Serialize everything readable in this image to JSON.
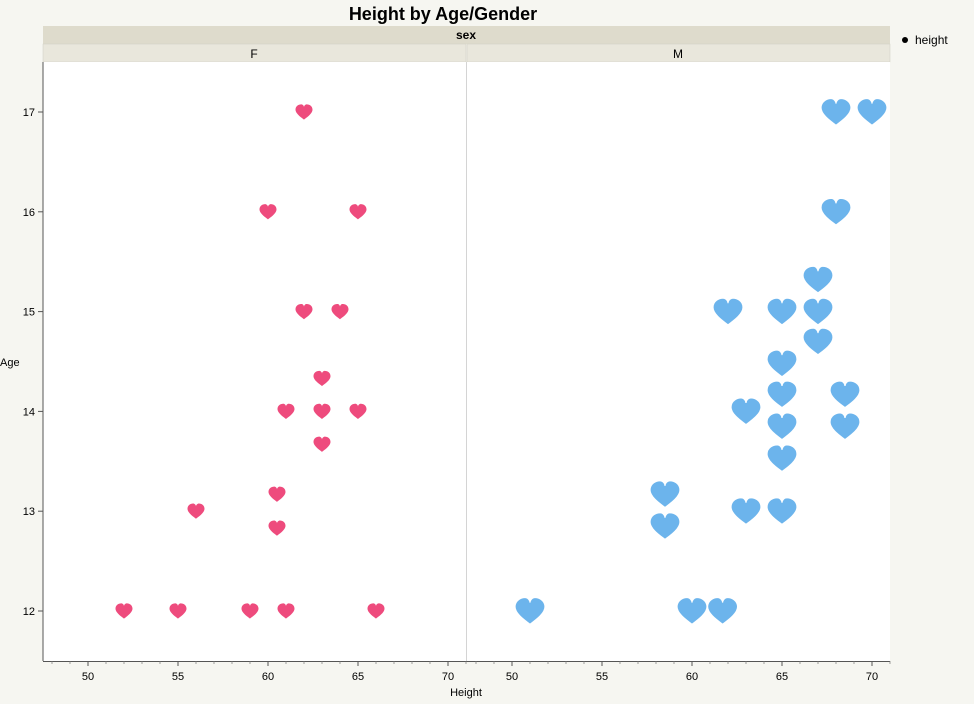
{
  "chart_data": {
    "type": "scatter",
    "title": "Height by Age/Gender",
    "group_header": "sex",
    "xlabel": "Height",
    "ylabel": "Age",
    "legend": {
      "label": "height",
      "placement": "top-right"
    },
    "y_ticks": [
      12,
      13,
      14,
      15,
      16,
      17
    ],
    "panels": [
      {
        "name": "F",
        "xlim": [
          47.5,
          71
        ],
        "x_ticks": [
          50,
          55,
          60,
          65,
          70
        ],
        "marker_color": "#ee4b7d",
        "marker_size": "small",
        "points": [
          {
            "x": 52,
            "y": 12
          },
          {
            "x": 55,
            "y": 12
          },
          {
            "x": 59,
            "y": 12
          },
          {
            "x": 61,
            "y": 12
          },
          {
            "x": 66,
            "y": 12
          },
          {
            "x": 56,
            "y": 13
          },
          {
            "x": 60.5,
            "y": 12.83
          },
          {
            "x": 60.5,
            "y": 13.17
          },
          {
            "x": 61,
            "y": 14
          },
          {
            "x": 63,
            "y": 14
          },
          {
            "x": 65,
            "y": 14
          },
          {
            "x": 63,
            "y": 13.67
          },
          {
            "x": 63,
            "y": 14.33
          },
          {
            "x": 62,
            "y": 15
          },
          {
            "x": 64,
            "y": 15
          },
          {
            "x": 60,
            "y": 16
          },
          {
            "x": 65,
            "y": 16
          },
          {
            "x": 62,
            "y": 17
          }
        ]
      },
      {
        "name": "M",
        "xlim": [
          47.5,
          71
        ],
        "x_ticks": [
          50,
          55,
          60,
          65,
          70
        ],
        "marker_color": "#6cb4ec",
        "marker_size": "large",
        "points": [
          {
            "x": 51,
            "y": 12
          },
          {
            "x": 60,
            "y": 12
          },
          {
            "x": 61.7,
            "y": 12
          },
          {
            "x": 58.5,
            "y": 12.85
          },
          {
            "x": 58.5,
            "y": 13.17
          },
          {
            "x": 63,
            "y": 13
          },
          {
            "x": 65,
            "y": 13
          },
          {
            "x": 65,
            "y": 13.53
          },
          {
            "x": 65,
            "y": 13.85
          },
          {
            "x": 68.5,
            "y": 13.85
          },
          {
            "x": 63,
            "y": 14
          },
          {
            "x": 65,
            "y": 14.17
          },
          {
            "x": 68.5,
            "y": 14.17
          },
          {
            "x": 65,
            "y": 14.48
          },
          {
            "x": 67,
            "y": 14.7
          },
          {
            "x": 62,
            "y": 15
          },
          {
            "x": 65,
            "y": 15
          },
          {
            "x": 67,
            "y": 15
          },
          {
            "x": 67,
            "y": 15.32
          },
          {
            "x": 68,
            "y": 16
          },
          {
            "x": 68,
            "y": 17
          },
          {
            "x": 70,
            "y": 17
          }
        ]
      }
    ]
  }
}
